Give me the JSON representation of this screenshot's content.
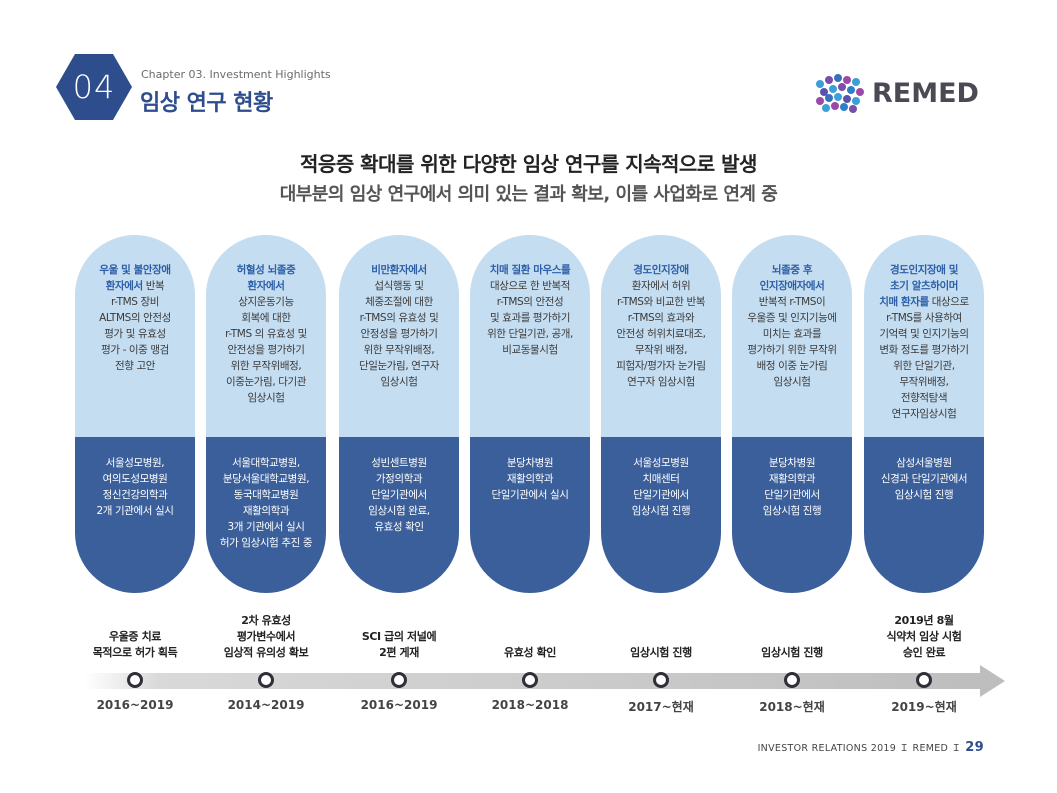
{
  "header": {
    "chapter_number": "04",
    "chapter_label": "Chapter 03. Investment Highlights",
    "title": "임상 연구 현황",
    "logo_text": "REMED"
  },
  "headline": {
    "line1": "적응증 확대를 위한 다양한 임상 연구를 지속적으로 발생",
    "line2": "대부분의 임상 연구에서 의미 있는 결과 확보, 이를 사업화로 연계 중"
  },
  "colors": {
    "brand_navy": "#2d4d8c",
    "pill_light": "#c5ddf0",
    "pill_dark": "#3a5f9a",
    "accent_text": "#2d5fa8"
  },
  "studies": [
    {
      "desc": [
        {
          "t": "우울 및 불안장애",
          "b": true
        },
        {
          "t": "환자에서",
          "b": true,
          "tail": " 반복"
        },
        {
          "t": "r-TMS 장비"
        },
        {
          "t": "ALTMS의 안전성"
        },
        {
          "t": "평가 및 유효성"
        },
        {
          "t": "평가 - 이중 맹검"
        },
        {
          "t": "전향 고안"
        }
      ],
      "institutions": [
        "서울성모병원,",
        "여의도성모병원",
        "정신건강의학과",
        "2개 기관에서 실시"
      ],
      "result": [
        "우울증 치료",
        "목적으로 허가 획득"
      ],
      "period": "2016~2019"
    },
    {
      "desc": [
        {
          "t": "허혈성 뇌졸중",
          "b": true
        },
        {
          "t": "환자에서",
          "b": true
        },
        {
          "t": "상지운동기능"
        },
        {
          "t": "회복에 대한"
        },
        {
          "t": "r-TMS 의 유효성 및"
        },
        {
          "t": "안전성을 평가하기"
        },
        {
          "t": "위한 무작위배정,"
        },
        {
          "t": "이중눈가림, 다기관"
        },
        {
          "t": "임상시험"
        }
      ],
      "institutions": [
        "서울대학교병원,",
        "분당서울대학교병원,",
        "동국대학교병원",
        "재활의학과",
        "3개 기관에서 실시",
        "허가 임상시험 추진 중"
      ],
      "result": [
        "2차 유효성",
        "평가변수에서",
        "임상적 유의성 확보"
      ],
      "period": "2014~2019"
    },
    {
      "desc": [
        {
          "t": "비만환자에서",
          "b": true
        },
        {
          "t": "섭식행동 및"
        },
        {
          "t": "체중조절에 대한"
        },
        {
          "t": "r-TMS의 유효성 및"
        },
        {
          "t": "안정성을 평가하기"
        },
        {
          "t": "위한 무작위배정,"
        },
        {
          "t": "단일눈가림, 연구자"
        },
        {
          "t": "임상시험"
        }
      ],
      "institutions": [
        "성빈센트병원",
        "가정의학과",
        "단일기관에서",
        "임상시험 완료,",
        "유효성 확인"
      ],
      "result": [
        "SCI 급의 저널에",
        "2편 게재"
      ],
      "period": "2016~2019"
    },
    {
      "desc": [
        {
          "t": "치매 질환 마우스를",
          "b": true
        },
        {
          "t": "대상으로 한 반복적"
        },
        {
          "t": "r-TMS의 안전성"
        },
        {
          "t": "및 효과를 평가하기"
        },
        {
          "t": "위한 단일기관, 공개,"
        },
        {
          "t": "비교동물시험"
        }
      ],
      "institutions": [
        "분당차병원",
        "재활의학과",
        "단일기관에서 실시"
      ],
      "result": [
        "유효성 확인"
      ],
      "period": "2018~2018"
    },
    {
      "desc": [
        {
          "t": "경도인지장애",
          "b": true
        },
        {
          "t": "환자에서 허위"
        },
        {
          "t": "r-TMS와 비교한 반복"
        },
        {
          "t": "r-TMS의 효과와"
        },
        {
          "t": "안전성 허위치료대조,"
        },
        {
          "t": "무작위 배정,"
        },
        {
          "t": "피험자/평가자 눈가림"
        },
        {
          "t": "연구자 임상시험"
        }
      ],
      "institutions": [
        "서울성모병원",
        "치매센터",
        "단일기관에서",
        "임상시험 진행"
      ],
      "result": [
        "임상시험 진행"
      ],
      "period": "2017~현재"
    },
    {
      "desc": [
        {
          "t": "뇌졸중 후",
          "b": true
        },
        {
          "t": "인지장애자에서",
          "b": true
        },
        {
          "t": "반복적 r-TMS이"
        },
        {
          "t": "우울증 및 인지기능에"
        },
        {
          "t": "미치는 효과를"
        },
        {
          "t": "평가하기 위한 무작위"
        },
        {
          "t": "배정 이중 눈가림"
        },
        {
          "t": "임상시험"
        }
      ],
      "institutions": [
        "분당차병원",
        "재활의학과",
        "단일기관에서",
        "임상시험 진행"
      ],
      "result": [
        "임상시험 진행"
      ],
      "period": "2018~현재"
    },
    {
      "desc": [
        {
          "t": "경도인지장애 및",
          "b": true
        },
        {
          "t": "초기 알츠하이머",
          "b": true
        },
        {
          "t": "치매 환자를",
          "b": true,
          "tail": " 대상으로"
        },
        {
          "t": "r-TMS를 사용하여"
        },
        {
          "t": "기억력 및 인지기능의"
        },
        {
          "t": "변화 정도를 평가하기"
        },
        {
          "t": "위한 단일기관,"
        },
        {
          "t": "무작위배정,"
        },
        {
          "t": "전향적탐색"
        },
        {
          "t": "연구자임상시험"
        }
      ],
      "institutions": [
        "삼성서울병원",
        "신경과 단일기관에서",
        "임상시험 진행"
      ],
      "result": [
        "2019년 8월",
        "식약처 임상 시험",
        "승인 완료"
      ],
      "period": "2019~현재"
    }
  ],
  "footer": {
    "label": "INVESTOR RELATIONS 2019 Ｉ REMED Ｉ",
    "page": "29"
  }
}
